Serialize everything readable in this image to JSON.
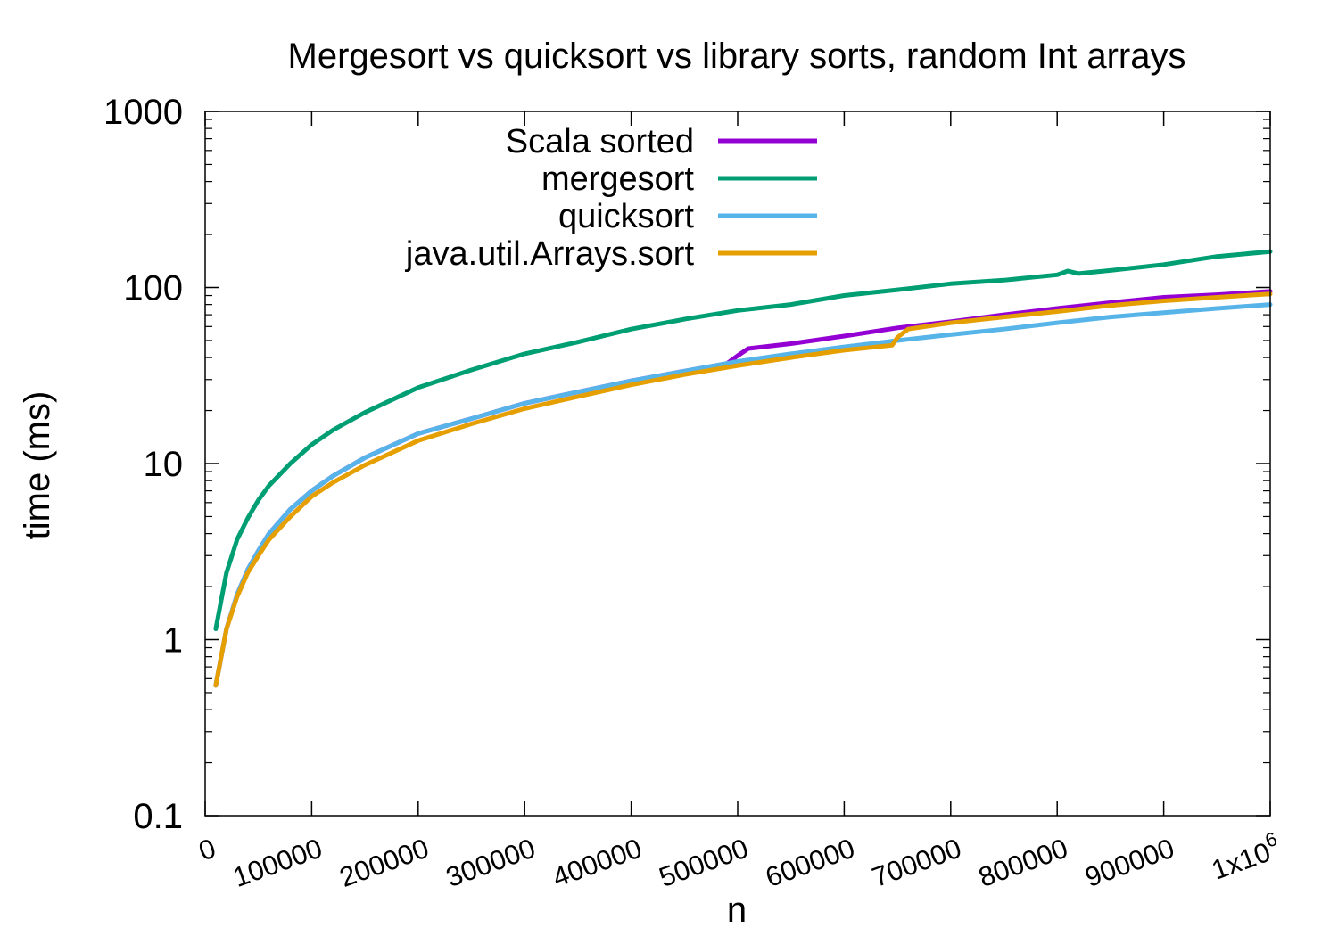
{
  "chart_data": {
    "type": "line",
    "title": "Mergesort vs quicksort vs library sorts, random Int arrays",
    "xlabel": "n",
    "ylabel": "time (ms)",
    "xlim": [
      0,
      1000000
    ],
    "ylim": [
      0.1,
      1000
    ],
    "yscale": "log",
    "grid": false,
    "legend_position": "top-left",
    "x_ticks": [
      {
        "value": 0,
        "label": "0"
      },
      {
        "value": 100000,
        "label": "100000"
      },
      {
        "value": 200000,
        "label": "200000"
      },
      {
        "value": 300000,
        "label": "300000"
      },
      {
        "value": 400000,
        "label": "400000"
      },
      {
        "value": 500000,
        "label": "500000"
      },
      {
        "value": 600000,
        "label": "600000"
      },
      {
        "value": 700000,
        "label": "700000"
      },
      {
        "value": 800000,
        "label": "800000"
      },
      {
        "value": 900000,
        "label": "900000"
      },
      {
        "value": 1000000,
        "label": "1x10",
        "sup": "6"
      }
    ],
    "y_ticks": [
      {
        "value": 0.1,
        "label": "0.1"
      },
      {
        "value": 1,
        "label": "1"
      },
      {
        "value": 10,
        "label": "10"
      },
      {
        "value": 100,
        "label": "100"
      },
      {
        "value": 1000,
        "label": "1000"
      }
    ],
    "series": [
      {
        "name": "Scala sorted",
        "color": "#9400D3",
        "points": [
          [
            10000,
            0.55
          ],
          [
            20000,
            1.15
          ],
          [
            30000,
            1.8
          ],
          [
            40000,
            2.5
          ],
          [
            50000,
            3.2
          ],
          [
            60000,
            4.0
          ],
          [
            80000,
            5.5
          ],
          [
            100000,
            7.0
          ],
          [
            120000,
            8.5
          ],
          [
            150000,
            10.8
          ],
          [
            200000,
            14.8
          ],
          [
            250000,
            18.0
          ],
          [
            300000,
            22.0
          ],
          [
            350000,
            25.5
          ],
          [
            400000,
            29.5
          ],
          [
            450000,
            33.5
          ],
          [
            490000,
            37.0
          ],
          [
            500000,
            41.0
          ],
          [
            510000,
            45.0
          ],
          [
            550000,
            48.0
          ],
          [
            600000,
            53.0
          ],
          [
            650000,
            59.0
          ],
          [
            700000,
            64.0
          ],
          [
            750000,
            70.0
          ],
          [
            800000,
            76.0
          ],
          [
            850000,
            82.0
          ],
          [
            900000,
            88.0
          ],
          [
            950000,
            91.0
          ],
          [
            1000000,
            95.0
          ]
        ]
      },
      {
        "name": "mergesort",
        "color": "#009E73",
        "points": [
          [
            10000,
            1.15
          ],
          [
            20000,
            2.4
          ],
          [
            30000,
            3.7
          ],
          [
            40000,
            4.9
          ],
          [
            50000,
            6.2
          ],
          [
            60000,
            7.5
          ],
          [
            80000,
            10.0
          ],
          [
            100000,
            12.8
          ],
          [
            120000,
            15.5
          ],
          [
            150000,
            19.5
          ],
          [
            200000,
            27.0
          ],
          [
            250000,
            34.0
          ],
          [
            300000,
            42.0
          ],
          [
            350000,
            49.0
          ],
          [
            400000,
            58.0
          ],
          [
            450000,
            66.0
          ],
          [
            500000,
            74.0
          ],
          [
            550000,
            80.0
          ],
          [
            600000,
            90.0
          ],
          [
            650000,
            97.0
          ],
          [
            700000,
            105.0
          ],
          [
            750000,
            110.0
          ],
          [
            800000,
            118.0
          ],
          [
            810000,
            124.0
          ],
          [
            820000,
            120.0
          ],
          [
            850000,
            125.0
          ],
          [
            900000,
            135.0
          ],
          [
            950000,
            150.0
          ],
          [
            1000000,
            160.0
          ]
        ]
      },
      {
        "name": "quicksort",
        "color": "#56B4E9",
        "points": [
          [
            10000,
            0.55
          ],
          [
            20000,
            1.15
          ],
          [
            30000,
            1.8
          ],
          [
            40000,
            2.5
          ],
          [
            50000,
            3.2
          ],
          [
            60000,
            4.0
          ],
          [
            80000,
            5.5
          ],
          [
            100000,
            7.0
          ],
          [
            120000,
            8.5
          ],
          [
            150000,
            10.8
          ],
          [
            200000,
            14.8
          ],
          [
            250000,
            18.0
          ],
          [
            300000,
            22.0
          ],
          [
            350000,
            25.5
          ],
          [
            400000,
            29.5
          ],
          [
            450000,
            33.5
          ],
          [
            500000,
            38.0
          ],
          [
            550000,
            42.0
          ],
          [
            600000,
            46.0
          ],
          [
            650000,
            50.0
          ],
          [
            700000,
            54.0
          ],
          [
            750000,
            58.0
          ],
          [
            800000,
            63.0
          ],
          [
            850000,
            68.0
          ],
          [
            900000,
            72.0
          ],
          [
            950000,
            76.0
          ],
          [
            1000000,
            80.0
          ]
        ]
      },
      {
        "name": "java.util.Arrays.sort",
        "color": "#E69F00",
        "points": [
          [
            10000,
            0.55
          ],
          [
            20000,
            1.15
          ],
          [
            30000,
            1.75
          ],
          [
            40000,
            2.4
          ],
          [
            50000,
            3.0
          ],
          [
            60000,
            3.7
          ],
          [
            80000,
            5.0
          ],
          [
            100000,
            6.5
          ],
          [
            120000,
            7.8
          ],
          [
            150000,
            9.8
          ],
          [
            200000,
            13.5
          ],
          [
            250000,
            16.8
          ],
          [
            300000,
            20.5
          ],
          [
            350000,
            24.0
          ],
          [
            400000,
            28.0
          ],
          [
            450000,
            32.0
          ],
          [
            500000,
            36.0
          ],
          [
            550000,
            40.0
          ],
          [
            600000,
            44.0
          ],
          [
            645000,
            47.0
          ],
          [
            650000,
            52.0
          ],
          [
            660000,
            58.0
          ],
          [
            700000,
            63.0
          ],
          [
            750000,
            68.0
          ],
          [
            800000,
            73.0
          ],
          [
            850000,
            79.0
          ],
          [
            900000,
            84.0
          ],
          [
            950000,
            88.0
          ],
          [
            1000000,
            92.0
          ]
        ]
      }
    ]
  }
}
